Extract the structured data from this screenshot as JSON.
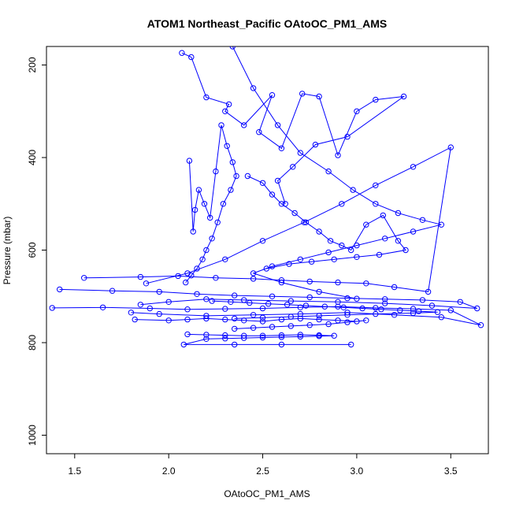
{
  "chart_data": {
    "type": "line",
    "title": "ATOM1 Northeast_Pacific OAtoOC_PM1_AMS",
    "xlabel": "OAtoOC_PM1_AMS",
    "ylabel": "Pressure (mbar)",
    "xlim": [
      1.35,
      3.7
    ],
    "ylim": [
      1040,
      160
    ],
    "y_reversed": true,
    "x_ticks": [
      1.5,
      2.0,
      2.5,
      3.0,
      3.5
    ],
    "x_tick_labels": [
      "1.5",
      "2.0",
      "2.5",
      "3.0",
      "3.5"
    ],
    "y_ticks": [
      200,
      400,
      600,
      800,
      1000
    ],
    "y_tick_labels": [
      "200",
      "400",
      "600",
      "800",
      "1000"
    ],
    "grid": false,
    "legend": "none",
    "color": "#0000ff",
    "marker": "open-circle",
    "series": [
      {
        "x": [
          2.07,
          2.12,
          2.2,
          2.32,
          2.3,
          2.4,
          2.55,
          2.48,
          2.6,
          2.71,
          2.8,
          2.9,
          3.0,
          3.1,
          3.25,
          2.95,
          2.78,
          2.66,
          2.58,
          2.62
        ],
        "y": [
          174,
          183,
          270,
          285,
          300,
          330,
          265,
          345,
          380,
          262,
          268,
          395,
          300,
          275,
          268,
          355,
          372,
          420,
          450,
          500
        ]
      },
      {
        "x": [
          2.11,
          2.13,
          2.14,
          2.16,
          2.19,
          2.22,
          2.25,
          2.28,
          2.31,
          2.34,
          2.36,
          2.33,
          2.29,
          2.26,
          2.23,
          2.2,
          2.18,
          2.15,
          2.12,
          2.09
        ],
        "y": [
          407,
          560,
          513,
          470,
          500,
          530,
          430,
          330,
          375,
          410,
          440,
          470,
          500,
          540,
          575,
          600,
          620,
          640,
          655,
          670
        ]
      },
      {
        "x": [
          2.42,
          2.5,
          2.55,
          2.6,
          2.67,
          2.73,
          2.8,
          2.86,
          2.92,
          2.97,
          3.05,
          3.14,
          3.22,
          3.26,
          3.12,
          3.0,
          2.88,
          2.76,
          2.64,
          2.52
        ],
        "y": [
          440,
          455,
          480,
          500,
          520,
          540,
          560,
          580,
          590,
          600,
          545,
          525,
          580,
          600,
          610,
          615,
          620,
          625,
          630,
          640
        ]
      },
      {
        "x": [
          1.55,
          1.85,
          2.05,
          2.25,
          2.45,
          2.6,
          2.75,
          2.9,
          3.05,
          3.2,
          3.38,
          3.5,
          3.3,
          3.1,
          2.92,
          2.72,
          2.5,
          2.3,
          2.1,
          1.88
        ],
        "y": [
          660,
          658,
          656,
          660,
          662,
          665,
          668,
          670,
          672,
          680,
          690,
          378,
          420,
          460,
          500,
          540,
          580,
          620,
          650,
          672
        ]
      },
      {
        "x": [
          1.38,
          1.65,
          1.9,
          2.1,
          2.3,
          2.5,
          2.7,
          2.9,
          3.1,
          3.3,
          3.5,
          3.66,
          3.45,
          3.2,
          2.95,
          2.7,
          2.45,
          2.2,
          1.95,
          1.8
        ],
        "y": [
          725,
          724,
          726,
          728,
          727,
          726,
          724,
          722,
          725,
          727,
          730,
          762,
          745,
          740,
          735,
          738,
          740,
          742,
          738,
          735
        ]
      },
      {
        "x": [
          1.42,
          1.7,
          1.95,
          2.15,
          2.35,
          2.55,
          2.75,
          2.95,
          3.15,
          3.35,
          3.55,
          3.64,
          3.4,
          3.15,
          2.9,
          2.65,
          2.4,
          2.2,
          2.0,
          1.85
        ],
        "y": [
          685,
          688,
          690,
          695,
          698,
          700,
          702,
          704,
          706,
          708,
          712,
          726,
          720,
          715,
          712,
          710,
          708,
          706,
          712,
          718
        ]
      },
      {
        "x": [
          1.82,
          2.0,
          2.1,
          2.2,
          2.3,
          2.4,
          2.5,
          2.6,
          2.7,
          2.8,
          2.9,
          3.0,
          3.05,
          2.95,
          2.85,
          2.75,
          2.65,
          2.55,
          2.45,
          2.35
        ],
        "y": [
          750,
          752,
          750,
          748,
          750,
          752,
          754,
          750,
          748,
          750,
          752,
          754,
          752,
          756,
          760,
          762,
          764,
          766,
          768,
          770
        ]
      },
      {
        "x": [
          2.1,
          2.2,
          2.3,
          2.4,
          2.5,
          2.6,
          2.7,
          2.8,
          2.88,
          2.8,
          2.7,
          2.6,
          2.5,
          2.4,
          2.3,
          2.2,
          2.08,
          2.35,
          2.6,
          2.97
        ],
        "y": [
          782,
          783,
          784,
          785,
          785,
          784,
          783,
          784,
          785,
          786,
          787,
          788,
          789,
          790,
          791,
          792,
          804,
          804,
          804,
          804
        ]
      },
      {
        "x": [
          2.23,
          2.33,
          2.43,
          2.53,
          2.63,
          2.73,
          2.83,
          2.93,
          3.03,
          3.13,
          3.23,
          3.33,
          3.43,
          3.3,
          3.1,
          2.95,
          2.8,
          2.65,
          2.5,
          2.35
        ],
        "y": [
          710,
          712,
          714,
          716,
          718,
          720,
          722,
          724,
          726,
          728,
          730,
          732,
          734,
          736,
          738,
          740,
          742,
          744,
          746,
          748
        ]
      },
      {
        "x": [
          2.34,
          2.45,
          2.58,
          2.7,
          2.85,
          2.98,
          3.1,
          3.22,
          3.35,
          3.45,
          3.3,
          3.15,
          3.0,
          2.85,
          2.7,
          2.55,
          2.45,
          2.6,
          2.8,
          3.0
        ],
        "y": [
          160,
          250,
          330,
          390,
          430,
          470,
          500,
          520,
          535,
          545,
          560,
          575,
          590,
          605,
          620,
          635,
          650,
          670,
          690,
          705
        ]
      }
    ]
  }
}
